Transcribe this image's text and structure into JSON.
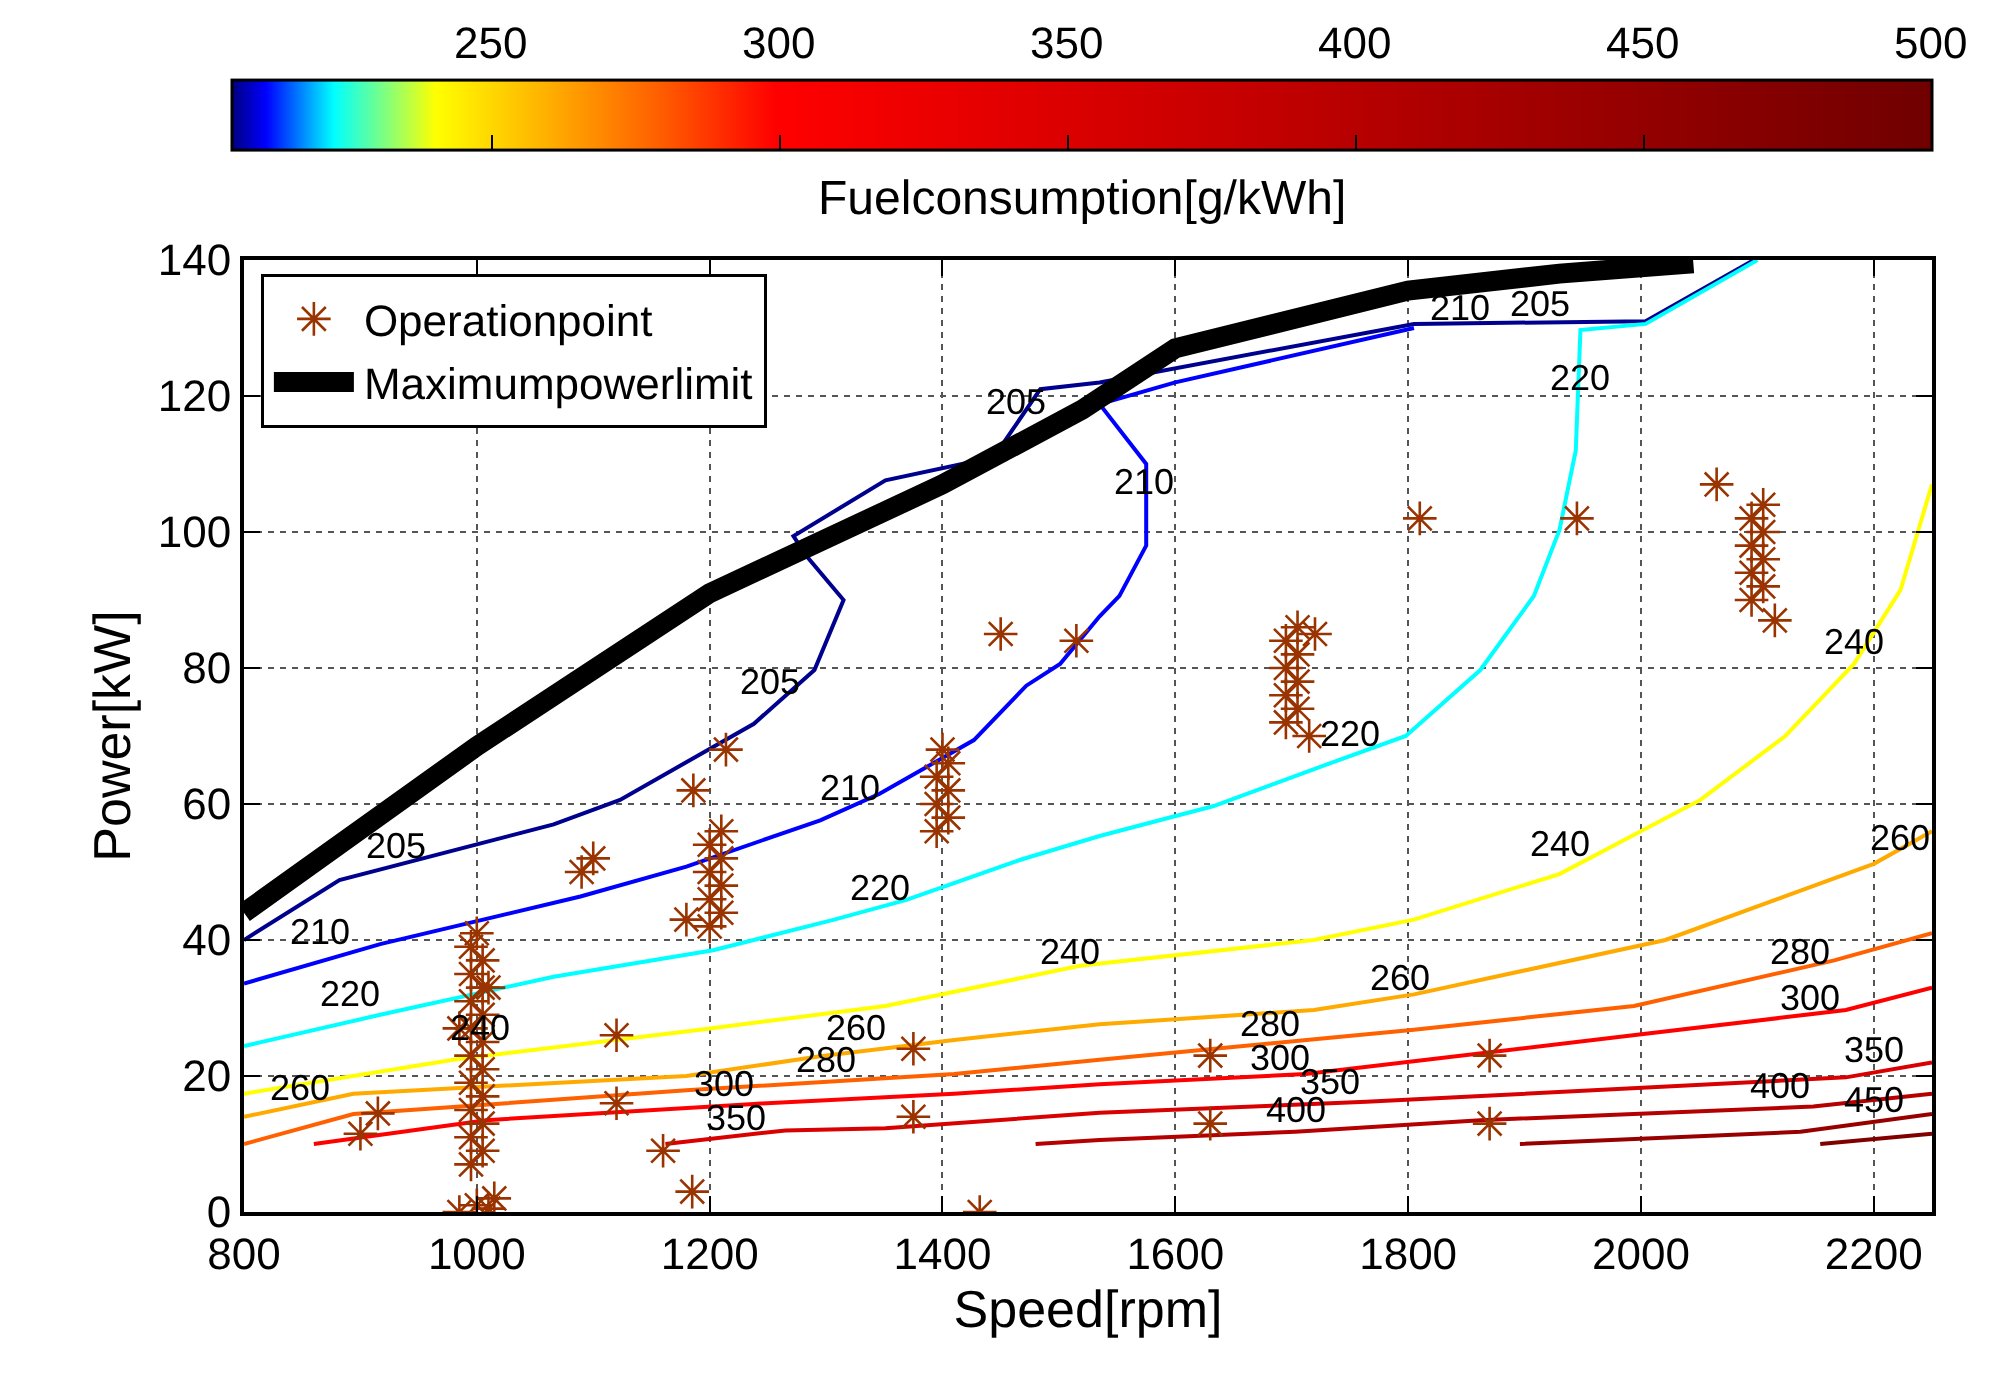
{
  "chart_data": {
    "type": "line",
    "xlabel": "Speed[rpm]",
    "ylabel": "Power[kW]",
    "clabel": "Fuelconsumption[g/kWh]",
    "xlim": [
      800,
      2250
    ],
    "xticks": [
      800,
      1000,
      1200,
      1400,
      1600,
      1800,
      2000,
      2200
    ],
    "ylim": [
      0,
      140
    ],
    "yticks": [
      0,
      20,
      40,
      60,
      80,
      100,
      120,
      140
    ],
    "clim": [
      205,
      500
    ],
    "cticks": [
      250,
      300,
      350,
      400,
      450,
      500
    ],
    "grid": true,
    "legend": "top left",
    "line_style": "solid",
    "series": [
      {
        "color": "#00008f",
        "x": [
          800,
          882,
          1066,
          1123,
          1238,
          1290,
          1315,
          1283,
          1272,
          1351,
          1444,
          1484,
          1535,
          1805,
          2004,
          2097
        ],
        "values": [
          40,
          48.8,
          57,
          60.6,
          71.8,
          79.7,
          90,
          96.5,
          99.4,
          107.6,
          111,
          121,
          122,
          130.6,
          131,
          140
        ]
      },
      {
        "color": "#0000ff",
        "x": [
          800,
          917,
          1089,
          1180,
          1295,
          1346,
          1427,
          1472,
          1501,
          1535,
          1552,
          1575,
          1575,
          1535,
          1600,
          1805
        ],
        "values": [
          33.6,
          39.4,
          46.4,
          50.8,
          57.6,
          61.5,
          69.4,
          77.4,
          80.6,
          87.6,
          90.6,
          98,
          110,
          118.8,
          122,
          130
        ]
      },
      {
        "color": "#00ffff",
        "x": [
          800,
          917,
          1066,
          1203,
          1307,
          1369,
          1467,
          1535,
          1633,
          1741,
          1798,
          1862,
          1908,
          1930,
          1944,
          1948,
          2004,
          2100
        ],
        "values": [
          24.4,
          29,
          34.6,
          38.5,
          43,
          45.9,
          51.8,
          55.3,
          59.7,
          66.5,
          70,
          79.7,
          90.6,
          100.3,
          112,
          129.7,
          130.6,
          140
        ]
      },
      {
        "color": "#ffff00",
        "x": [
          800,
          980,
          1192,
          1351,
          1484,
          1518,
          1719,
          1805,
          1930,
          2051,
          2124,
          2183,
          2223,
          2250
        ],
        "values": [
          17.4,
          22.4,
          26.8,
          30.3,
          35,
          36.2,
          40,
          43,
          49.7,
          60.6,
          70,
          80.6,
          91.5,
          107
        ]
      },
      {
        "color": "#ffaa00",
        "x": [
          800,
          894,
          1180,
          1295,
          1410,
          1535,
          1719,
          1805,
          2021,
          2200,
          2250
        ],
        "values": [
          14,
          17.4,
          20,
          22.9,
          25.3,
          27.6,
          29.7,
          32,
          40,
          51.2,
          56
        ]
      },
      {
        "color": "#ff6000",
        "x": [
          800,
          894,
          1180,
          1410,
          1535,
          1805,
          1994,
          2166,
          2250
        ],
        "values": [
          10,
          14.4,
          17.9,
          20.3,
          22.4,
          26.8,
          30.3,
          37,
          41
        ]
      },
      {
        "color": "#ff0000",
        "x": [
          860,
          1008,
          1238,
          1410,
          1535,
          1712,
          2004,
          2176,
          2250
        ],
        "values": [
          10,
          13.5,
          15.9,
          17.4,
          18.8,
          20.3,
          26.2,
          29.7,
          33
        ]
      },
      {
        "color": "#d80000",
        "x": [
          1162,
          1265,
          1351,
          1535,
          1764,
          2176,
          2250
        ],
        "values": [
          10,
          12,
          12.3,
          14.6,
          16.2,
          19.8,
          22
        ]
      },
      {
        "color": "#b40000",
        "x": [
          1480,
          1535,
          1703,
          1862,
          2148,
          2250
        ],
        "values": [
          10,
          10.6,
          11.8,
          13.5,
          15.5,
          17.4
        ]
      },
      {
        "color": "#980000",
        "x": [
          1896,
          2137,
          2250
        ],
        "values": [
          10,
          11.8,
          14.4
        ]
      },
      {
        "color": "#800000",
        "x": [
          2154,
          2250
        ],
        "values": [
          10,
          11.5
        ]
      },
      {
        "name": "Operationpoint",
        "type": "scatter",
        "marker": "cross",
        "color": "#993300",
        "x": [
          995,
          1005,
          995,
          1005,
          995,
          1005,
          995,
          1005,
          995,
          1005,
          995,
          1005,
          995,
          1005,
          995,
          1005,
          995,
          1000,
          985,
          1010,
          985,
          1000,
          1010,
          1015,
          900,
          915,
          1090,
          1100,
          1120,
          1120,
          1160,
          1185,
          1180,
          1186,
          1214,
          1375,
          1375,
          1432,
          1450,
          1515,
          1630,
          1630,
          1810,
          1945,
          1870,
          1870,
          2065,
          2115,
          1715,
          1720,
          1200,
          1210,
          1200,
          1210,
          1200,
          1210,
          1200,
          1210,
          1395,
          1405,
          1395,
          1405,
          1395,
          1405,
          1400,
          1695,
          1705,
          1695,
          1705,
          1695,
          1705,
          1695,
          1705,
          2095,
          2105,
          2095,
          2105,
          2095,
          2105,
          2095,
          2105
        ],
        "values": [
          7,
          9,
          11,
          13,
          15,
          17,
          19,
          21,
          23,
          25,
          27,
          29,
          31,
          33,
          35,
          37,
          39,
          41,
          27,
          33,
          0,
          1,
          0.5,
          2,
          11.5,
          14.5,
          50,
          52,
          26,
          16,
          9,
          3,
          43,
          62,
          68,
          24,
          14,
          0,
          85,
          84,
          23,
          13,
          102,
          102,
          23,
          13,
          107,
          87,
          70,
          85,
          42,
          44,
          46,
          48,
          50,
          52,
          54,
          56,
          56,
          58,
          60,
          62,
          64,
          66,
          68,
          72,
          74,
          76,
          78,
          80,
          82,
          84,
          86,
          90,
          92,
          94,
          96,
          98,
          100,
          102,
          104
        ]
      },
      {
        "name": "Maximumpowerlimit",
        "color": "#000000",
        "x": [
          800,
          1000,
          1200,
          1400,
          1520,
          1600,
          1800,
          1930,
          2045
        ],
        "values": [
          44,
          68.5,
          91,
          107,
          118,
          127,
          135.5,
          138,
          139.5
        ]
      }
    ],
    "annotations": [
      {
        "text": "205",
        "x": 930,
        "y": 50.6
      },
      {
        "text": "205",
        "x": 1252,
        "y": 74.7
      },
      {
        "text": "205",
        "x": 1464,
        "y": 116
      },
      {
        "text": "205",
        "x": 1913,
        "y": 130.3
      },
      {
        "text": "210",
        "x": 865,
        "y": 38
      },
      {
        "text": "210",
        "x": 1320,
        "y": 59
      },
      {
        "text": "210",
        "x": 1573,
        "y": 104
      },
      {
        "text": "210",
        "x": 1845,
        "y": 129.7
      },
      {
        "text": "220",
        "x": 891,
        "y": 28.8
      },
      {
        "text": "220",
        "x": 1346,
        "y": 44.4
      },
      {
        "text": "220",
        "x": 1750,
        "y": 67
      },
      {
        "text": "220",
        "x": 1948,
        "y": 119.4
      },
      {
        "text": "240",
        "x": 1003,
        "y": 23.8
      },
      {
        "text": "240",
        "x": 1509,
        "y": 35
      },
      {
        "text": "240",
        "x": 1930,
        "y": 50.9
      },
      {
        "text": "240",
        "x": 2183,
        "y": 80.6
      },
      {
        "text": "260",
        "x": 848,
        "y": 15
      },
      {
        "text": "260",
        "x": 1326,
        "y": 23.8
      },
      {
        "text": "260",
        "x": 1793,
        "y": 31.2
      },
      {
        "text": "260",
        "x": 2222,
        "y": 51.8
      },
      {
        "text": "280",
        "x": 1300,
        "y": 19.1
      },
      {
        "text": "280",
        "x": 1681,
        "y": 24.4
      },
      {
        "text": "280",
        "x": 2136,
        "y": 35
      },
      {
        "text": "300",
        "x": 1213,
        "y": 15.6
      },
      {
        "text": "300",
        "x": 1690,
        "y": 19.4
      },
      {
        "text": "300",
        "x": 2145,
        "y": 28.2
      },
      {
        "text": "350",
        "x": 1223,
        "y": 10.6
      },
      {
        "text": "350",
        "x": 1733,
        "y": 15.9
      },
      {
        "text": "350",
        "x": 2200,
        "y": 20.5
      },
      {
        "text": "400",
        "x": 1703,
        "y": 11.8
      },
      {
        "text": "400",
        "x": 2120,
        "y": 15.3
      },
      {
        "text": "450",
        "x": 2200,
        "y": 13.3
      }
    ]
  }
}
